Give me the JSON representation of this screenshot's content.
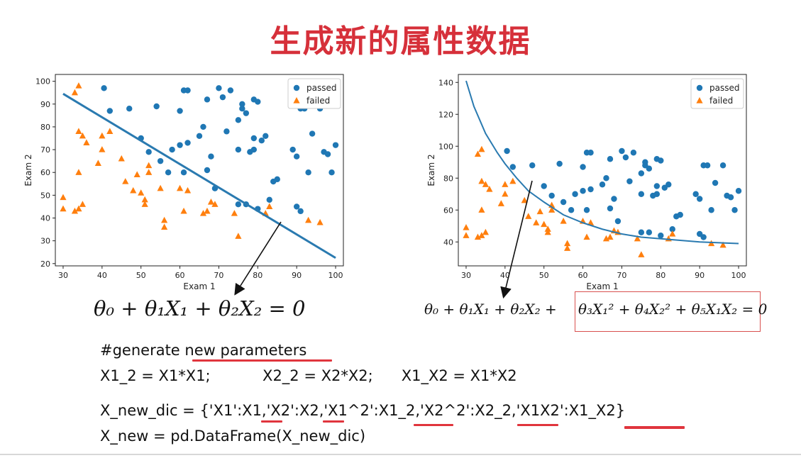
{
  "title": "生成新的属性数据",
  "chart_data": [
    {
      "type": "scatter",
      "xlabel": "Exam 1",
      "ylabel": "Exam 2",
      "xlim": [
        28,
        102
      ],
      "ylim": [
        19,
        103
      ],
      "xticks": [
        "30",
        "40",
        "50",
        "60",
        "70",
        "80",
        "90",
        "100"
      ],
      "yticks": [
        "20",
        "30",
        "40",
        "50",
        "60",
        "70",
        "80",
        "90",
        "100"
      ],
      "legend_position": "top-right",
      "series": [
        {
          "name": "passed",
          "marker": "circle",
          "color": "#1f77b4",
          "points": [
            [
              40.5,
              97
            ],
            [
              42,
              87
            ],
            [
              47,
              88
            ],
            [
              54,
              89
            ],
            [
              60,
              87
            ],
            [
              61,
              96
            ],
            [
              62,
              96
            ],
            [
              65,
              76
            ],
            [
              66,
              80
            ],
            [
              67,
              92
            ],
            [
              70,
              97
            ],
            [
              71,
              93
            ],
            [
              72,
              78
            ],
            [
              73,
              96
            ],
            [
              75,
              83
            ],
            [
              76,
              88
            ],
            [
              76,
              90
            ],
            [
              77,
              86
            ],
            [
              79,
              92
            ],
            [
              79,
              75
            ],
            [
              80,
              91
            ],
            [
              82,
              76
            ],
            [
              81,
              74
            ],
            [
              79,
              70
            ],
            [
              78,
              69
            ],
            [
              75,
              70
            ],
            [
              68,
              67
            ],
            [
              67,
              61
            ],
            [
              62,
              73
            ],
            [
              60,
              72
            ],
            [
              58,
              70
            ],
            [
              61,
              60
            ],
            [
              57,
              60
            ],
            [
              55,
              65
            ],
            [
              52,
              69
            ],
            [
              50,
              75
            ],
            [
              69,
              53
            ],
            [
              75,
              46
            ],
            [
              77,
              46
            ],
            [
              80,
              44
            ],
            [
              83,
              48
            ],
            [
              84,
              56
            ],
            [
              85,
              57
            ],
            [
              89,
              70
            ],
            [
              90,
              67
            ],
            [
              91,
              88
            ],
            [
              92,
              88
            ],
            [
              93,
              60
            ],
            [
              94,
              77
            ],
            [
              96,
              88
            ],
            [
              97,
              69
            ],
            [
              98,
              68
            ],
            [
              99,
              60
            ],
            [
              100,
              72
            ],
            [
              90,
              45
            ],
            [
              91,
              43
            ]
          ]
        },
        {
          "name": "failed",
          "marker": "triangle",
          "color": "#ff7f0e",
          "points": [
            [
              30,
              49
            ],
            [
              30,
              44
            ],
            [
              33,
              43
            ],
            [
              33,
              95
            ],
            [
              34,
              98
            ],
            [
              34,
              44
            ],
            [
              34,
              60
            ],
            [
              34,
              78
            ],
            [
              35,
              76
            ],
            [
              35,
              46
            ],
            [
              36,
              73
            ],
            [
              39,
              64
            ],
            [
              40,
              76
            ],
            [
              40,
              70
            ],
            [
              42,
              78
            ],
            [
              45,
              66
            ],
            [
              46,
              56
            ],
            [
              48,
              52
            ],
            [
              49,
              59
            ],
            [
              50,
              51
            ],
            [
              51,
              48
            ],
            [
              51,
              46
            ],
            [
              52,
              60
            ],
            [
              52,
              63
            ],
            [
              55,
              53
            ],
            [
              56,
              39
            ],
            [
              56,
              36
            ],
            [
              60,
              53
            ],
            [
              61,
              43
            ],
            [
              62,
              52
            ],
            [
              66,
              42
            ],
            [
              67,
              43
            ],
            [
              68,
              47
            ],
            [
              69,
              46
            ],
            [
              74,
              42
            ],
            [
              75,
              32
            ],
            [
              82,
              42
            ],
            [
              83,
              45
            ],
            [
              93,
              39
            ],
            [
              96,
              38
            ]
          ]
        }
      ],
      "decision_boundary": {
        "type": "line",
        "x": [
          30,
          100
        ],
        "y": [
          94.5,
          22.5
        ]
      }
    },
    {
      "type": "scatter",
      "xlabel": "Exam 1",
      "ylabel": "Exam 2",
      "xlim": [
        28,
        102
      ],
      "ylim": [
        25,
        145
      ],
      "xticks": [
        "30",
        "40",
        "50",
        "60",
        "70",
        "80",
        "90",
        "100"
      ],
      "yticks": [
        "40",
        "60",
        "80",
        "100",
        "120",
        "140"
      ],
      "legend_position": "top-right",
      "series": [
        {
          "name": "passed",
          "marker": "circle",
          "color": "#1f77b4",
          "points": [
            [
              40.5,
              97
            ],
            [
              42,
              87
            ],
            [
              47,
              88
            ],
            [
              54,
              89
            ],
            [
              60,
              87
            ],
            [
              61,
              96
            ],
            [
              62,
              96
            ],
            [
              65,
              76
            ],
            [
              66,
              80
            ],
            [
              67,
              92
            ],
            [
              70,
              97
            ],
            [
              71,
              93
            ],
            [
              72,
              78
            ],
            [
              73,
              96
            ],
            [
              75,
              83
            ],
            [
              76,
              88
            ],
            [
              76,
              90
            ],
            [
              77,
              86
            ],
            [
              79,
              92
            ],
            [
              79,
              75
            ],
            [
              80,
              91
            ],
            [
              82,
              76
            ],
            [
              81,
              74
            ],
            [
              79,
              70
            ],
            [
              78,
              69
            ],
            [
              75,
              70
            ],
            [
              68,
              67
            ],
            [
              67,
              61
            ],
            [
              62,
              73
            ],
            [
              60,
              72
            ],
            [
              58,
              70
            ],
            [
              61,
              60
            ],
            [
              57,
              60
            ],
            [
              55,
              65
            ],
            [
              52,
              69
            ],
            [
              50,
              75
            ],
            [
              69,
              53
            ],
            [
              75,
              46
            ],
            [
              77,
              46
            ],
            [
              80,
              44
            ],
            [
              83,
              48
            ],
            [
              84,
              56
            ],
            [
              85,
              57
            ],
            [
              89,
              70
            ],
            [
              90,
              67
            ],
            [
              91,
              88
            ],
            [
              92,
              88
            ],
            [
              93,
              60
            ],
            [
              94,
              77
            ],
            [
              96,
              88
            ],
            [
              97,
              69
            ],
            [
              98,
              68
            ],
            [
              99,
              60
            ],
            [
              100,
              72
            ],
            [
              90,
              45
            ],
            [
              91,
              43
            ]
          ]
        },
        {
          "name": "failed",
          "marker": "triangle",
          "color": "#ff7f0e",
          "points": [
            [
              30,
              49
            ],
            [
              30,
              44
            ],
            [
              33,
              43
            ],
            [
              33,
              95
            ],
            [
              34,
              98
            ],
            [
              34,
              44
            ],
            [
              34,
              60
            ],
            [
              34,
              78
            ],
            [
              35,
              76
            ],
            [
              35,
              46
            ],
            [
              36,
              73
            ],
            [
              39,
              64
            ],
            [
              40,
              76
            ],
            [
              40,
              70
            ],
            [
              42,
              78
            ],
            [
              45,
              66
            ],
            [
              46,
              56
            ],
            [
              48,
              52
            ],
            [
              49,
              59
            ],
            [
              50,
              51
            ],
            [
              51,
              48
            ],
            [
              51,
              46
            ],
            [
              52,
              60
            ],
            [
              52,
              63
            ],
            [
              55,
              53
            ],
            [
              56,
              39
            ],
            [
              56,
              36
            ],
            [
              60,
              53
            ],
            [
              61,
              43
            ],
            [
              62,
              52
            ],
            [
              66,
              42
            ],
            [
              67,
              43
            ],
            [
              68,
              47
            ],
            [
              69,
              46
            ],
            [
              74,
              42
            ],
            [
              75,
              32
            ],
            [
              82,
              42
            ],
            [
              83,
              45
            ],
            [
              93,
              39
            ],
            [
              96,
              38
            ]
          ]
        }
      ],
      "decision_boundary": {
        "type": "curve",
        "x": [
          30,
          32,
          35,
          38,
          40,
          43,
          46,
          50,
          55,
          60,
          65,
          70,
          75,
          80,
          85,
          90,
          95,
          100
        ],
        "y": [
          141,
          125,
          108,
          96,
          89,
          80,
          72,
          65,
          57,
          52,
          48,
          45,
          43,
          42,
          41,
          40,
          39.5,
          39
        ]
      }
    }
  ],
  "equations": {
    "left": "θ₀ + θ₁X₁ + θ₂X₂ = 0",
    "right_a": "θ₀ + θ₁X₁ + θ₂X₂ +",
    "right_b": "θ₃X₁² + θ₄X₂² + θ₅X₁X₂ = 0"
  },
  "code": {
    "line1": "#generate new parameters",
    "line2": "X1_2 = X1*X1;           X2_2 = X2*X2;      X1_X2 = X1*X2",
    "line3": "X_new_dic = {'X1':X1,'X2':X2,'X1^2':X1_2,'X2^2':X2_2,'X1X2':X1_X2}",
    "line4": "X_new = pd.DataFrame(X_new_dic)"
  }
}
